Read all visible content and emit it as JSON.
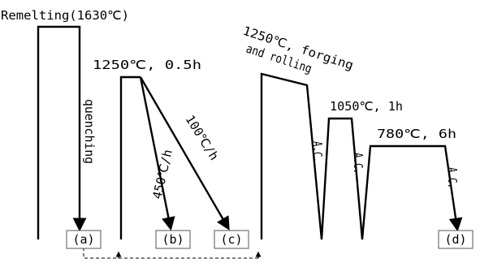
{
  "title": "",
  "labels": {
    "remelting": "Remelting(1630℃)",
    "quenching": "quenching",
    "hold_1250": "1250℃, 0.5h",
    "rate_450": "450℃/h",
    "rate_100": "100℃/h",
    "forging_line1": "1250℃, forging",
    "forging_line2": "and rolling",
    "hold_1050": "1050℃, 1h",
    "hold_780": "780℃, 6h",
    "ac": "A.C."
  },
  "samples": [
    "(a)",
    "(b)",
    "(c)",
    "(d)"
  ]
}
